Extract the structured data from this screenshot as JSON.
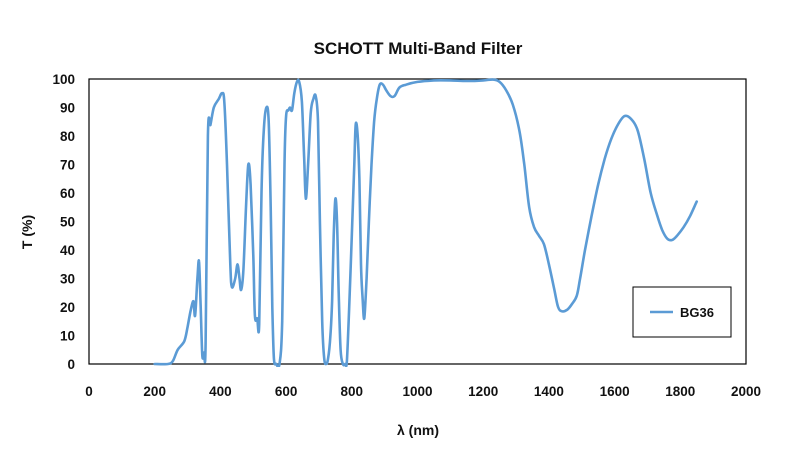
{
  "chart_data": {
    "type": "line",
    "title": "SCHOTT Multi-Band Filter",
    "xlabel": "λ (nm)",
    "ylabel": "T (%)",
    "xlim": [
      0,
      2000
    ],
    "ylim": [
      0,
      100
    ],
    "xticks": [
      0,
      200,
      400,
      600,
      800,
      1000,
      1200,
      1400,
      1600,
      1800,
      2000
    ],
    "yticks": [
      0,
      10,
      20,
      30,
      40,
      50,
      60,
      70,
      80,
      90,
      100
    ],
    "grid": false,
    "legend": {
      "position": "bottom-right",
      "entries": [
        "BG36"
      ]
    },
    "series": [
      {
        "name": "BG36",
        "color": "#5b9bd5",
        "points": [
          [
            200,
            0
          ],
          [
            240,
            0
          ],
          [
            255,
            1
          ],
          [
            270,
            5
          ],
          [
            290,
            8
          ],
          [
            300,
            13
          ],
          [
            310,
            19
          ],
          [
            318,
            22
          ],
          [
            323,
            17
          ],
          [
            330,
            30
          ],
          [
            335,
            36
          ],
          [
            340,
            20
          ],
          [
            345,
            3
          ],
          [
            350,
            4
          ],
          [
            355,
            7
          ],
          [
            362,
            80
          ],
          [
            370,
            84
          ],
          [
            380,
            90
          ],
          [
            395,
            93
          ],
          [
            405,
            95
          ],
          [
            412,
            92
          ],
          [
            420,
            70
          ],
          [
            430,
            35
          ],
          [
            435,
            27
          ],
          [
            445,
            30
          ],
          [
            452,
            35
          ],
          [
            458,
            30
          ],
          [
            463,
            26
          ],
          [
            470,
            33
          ],
          [
            478,
            55
          ],
          [
            485,
            70
          ],
          [
            492,
            63
          ],
          [
            500,
            38
          ],
          [
            505,
            17
          ],
          [
            512,
            16
          ],
          [
            518,
            14
          ],
          [
            525,
            60
          ],
          [
            532,
            82
          ],
          [
            540,
            90
          ],
          [
            547,
            85
          ],
          [
            553,
            55
          ],
          [
            558,
            20
          ],
          [
            563,
            2
          ],
          [
            570,
            0
          ],
          [
            580,
            0
          ],
          [
            588,
            15
          ],
          [
            595,
            70
          ],
          [
            600,
            87
          ],
          [
            607,
            89
          ],
          [
            612,
            90
          ],
          [
            618,
            89
          ],
          [
            625,
            95
          ],
          [
            633,
            99
          ],
          [
            640,
            99
          ],
          [
            648,
            92
          ],
          [
            655,
            72
          ],
          [
            660,
            58
          ],
          [
            667,
            70
          ],
          [
            675,
            88
          ],
          [
            683,
            93
          ],
          [
            690,
            94
          ],
          [
            697,
            85
          ],
          [
            703,
            50
          ],
          [
            710,
            15
          ],
          [
            716,
            2
          ],
          [
            722,
            0
          ],
          [
            728,
            2
          ],
          [
            735,
            10
          ],
          [
            740,
            22
          ],
          [
            745,
            45
          ],
          [
            750,
            58
          ],
          [
            755,
            50
          ],
          [
            760,
            25
          ],
          [
            766,
            5
          ],
          [
            773,
            0
          ],
          [
            780,
            0
          ],
          [
            785,
            1
          ],
          [
            792,
            20
          ],
          [
            800,
            45
          ],
          [
            807,
            68
          ],
          [
            812,
            84
          ],
          [
            818,
            80
          ],
          [
            823,
            65
          ],
          [
            828,
            35
          ],
          [
            833,
            23
          ],
          [
            838,
            16
          ],
          [
            845,
            30
          ],
          [
            852,
            50
          ],
          [
            860,
            70
          ],
          [
            868,
            85
          ],
          [
            876,
            93
          ],
          [
            885,
            98
          ],
          [
            895,
            98
          ],
          [
            905,
            96
          ],
          [
            918,
            94
          ],
          [
            930,
            94
          ],
          [
            945,
            97
          ],
          [
            965,
            98
          ],
          [
            1000,
            99
          ],
          [
            1050,
            99.5
          ],
          [
            1100,
            99.5
          ],
          [
            1150,
            99.3
          ],
          [
            1200,
            99.5
          ],
          [
            1230,
            99.8
          ],
          [
            1250,
            99
          ],
          [
            1270,
            96
          ],
          [
            1290,
            91
          ],
          [
            1310,
            82
          ],
          [
            1325,
            70
          ],
          [
            1340,
            55
          ],
          [
            1355,
            48
          ],
          [
            1370,
            45
          ],
          [
            1385,
            42
          ],
          [
            1400,
            35
          ],
          [
            1415,
            27
          ],
          [
            1428,
            20
          ],
          [
            1440,
            18.5
          ],
          [
            1455,
            19
          ],
          [
            1470,
            21
          ],
          [
            1485,
            24
          ],
          [
            1495,
            30
          ],
          [
            1510,
            40
          ],
          [
            1530,
            52
          ],
          [
            1550,
            63
          ],
          [
            1570,
            72
          ],
          [
            1590,
            79
          ],
          [
            1610,
            84
          ],
          [
            1630,
            87
          ],
          [
            1650,
            86
          ],
          [
            1670,
            82
          ],
          [
            1690,
            72
          ],
          [
            1710,
            60
          ],
          [
            1730,
            52
          ],
          [
            1745,
            47
          ],
          [
            1760,
            44
          ],
          [
            1775,
            43.5
          ],
          [
            1790,
            45
          ],
          [
            1810,
            48
          ],
          [
            1830,
            52
          ],
          [
            1850,
            57
          ]
        ]
      }
    ]
  }
}
